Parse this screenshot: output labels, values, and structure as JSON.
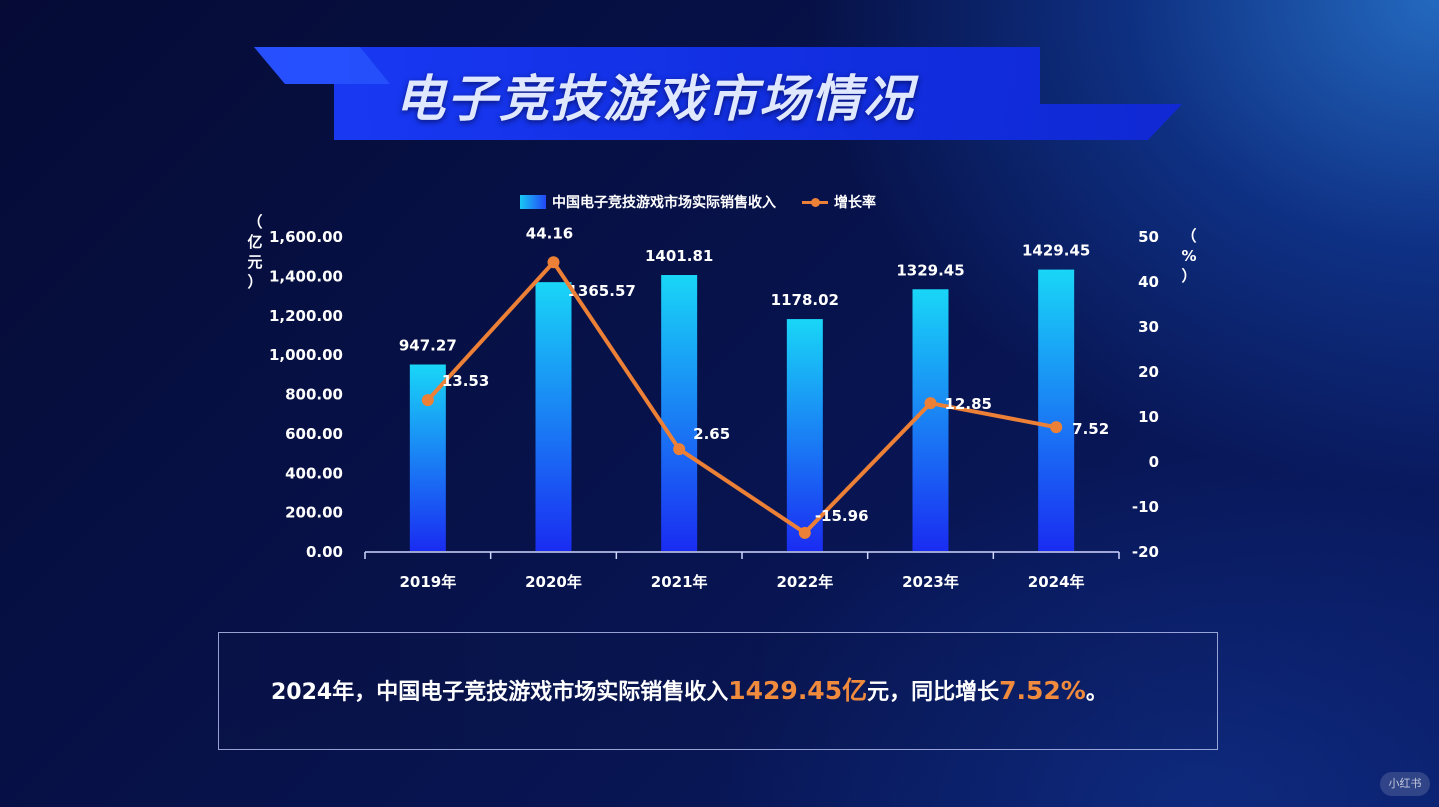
{
  "title": "电子竞技游戏市场情况",
  "legend": {
    "bar_label": "中国电子竞技游戏市场实际销售收入",
    "line_label": "增长率"
  },
  "axis_units": {
    "left": [
      "（",
      "亿",
      "元",
      "）"
    ],
    "right": [
      "（",
      "%",
      "）"
    ]
  },
  "summary": {
    "prefix": "2024年，中国电子竞技游戏市场实际销售收入",
    "revenue": "1429.45亿",
    "middle": "元，同比增长",
    "growth": "7.52%",
    "suffix": "。"
  },
  "watermark": "小红书",
  "colors": {
    "bar_top": "#19d6f7",
    "bar_bottom": "#1a2cf2",
    "line": "#ec8036",
    "highlight": "#f08a3c",
    "banner": "#1530f0"
  },
  "chart_data": {
    "type": "bar+line",
    "categories": [
      "2019年",
      "2020年",
      "2021年",
      "2022年",
      "2023年",
      "2024年"
    ],
    "series": [
      {
        "name": "中国电子竞技游戏市场实际销售收入",
        "type": "bar",
        "axis": "left",
        "values": [
          947.27,
          1365.57,
          1401.81,
          1178.02,
          1329.45,
          1429.45
        ],
        "labels": [
          "947.27",
          "1365.57",
          "1401.81",
          "1178.02",
          "1329.45",
          "1429.45"
        ]
      },
      {
        "name": "增长率",
        "type": "line",
        "axis": "right",
        "values": [
          13.53,
          44.16,
          2.65,
          -15.96,
          12.85,
          7.52
        ],
        "labels": [
          "13.53",
          "44.16",
          "2.65",
          "-15.96",
          "12.85",
          "7.52"
        ]
      }
    ],
    "y_left": {
      "ylim": [
        0,
        1600
      ],
      "ticks": [
        0,
        200,
        400,
        600,
        800,
        1000,
        1200,
        1400,
        1600
      ],
      "tick_labels": [
        "0.00",
        "200.00",
        "400.00",
        "600.00",
        "800.00",
        "1,000.00",
        "1,200.00",
        "1,400.00",
        "1,600.00"
      ]
    },
    "y_right": {
      "ylim": [
        -20,
        50
      ],
      "ticks": [
        -20,
        -10,
        0,
        10,
        20,
        30,
        40,
        50
      ],
      "tick_labels": [
        "-20",
        "-10",
        "0",
        "10",
        "20",
        "30",
        "40",
        "50"
      ]
    },
    "grid": false,
    "legend_position": "top-center"
  }
}
